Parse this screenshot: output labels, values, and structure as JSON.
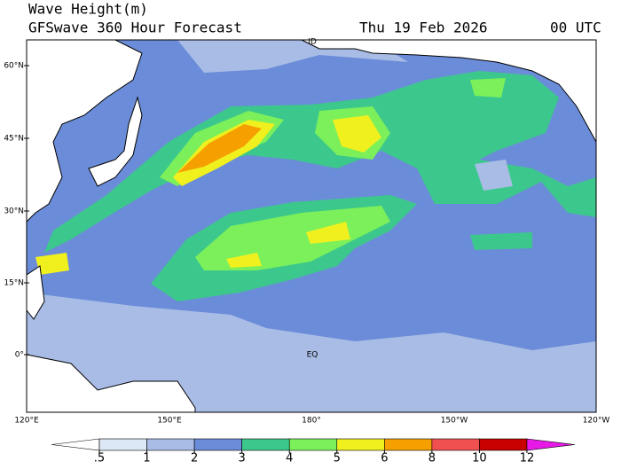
{
  "header": {
    "title": "Wave Height(m)",
    "subtitle": "GFSwave 360 Hour Forecast",
    "date": "Thu 19 Feb 2026",
    "time": "00 UTC"
  },
  "map": {
    "lat_labels": [
      "60°N",
      "45°N",
      "30°N",
      "15°N",
      "0°"
    ],
    "lon_labels": [
      "120°E",
      "150°E",
      "180°",
      "150°W",
      "120°W"
    ],
    "labels": [
      "ID",
      "EQ"
    ]
  },
  "colorbar": {
    "levels": [
      {
        "value": 0.5,
        "label": ".5"
      },
      1,
      2,
      3,
      4,
      5,
      6,
      8,
      10,
      12
    ],
    "colors": [
      "#ffffff",
      "#dce8f5",
      "#a8bce6",
      "#6b8cd8",
      "#3cc88c",
      "#7cf05a",
      "#f0f01e",
      "#f5a000",
      "#f05050",
      "#c80000",
      "#e619e6"
    ]
  }
}
